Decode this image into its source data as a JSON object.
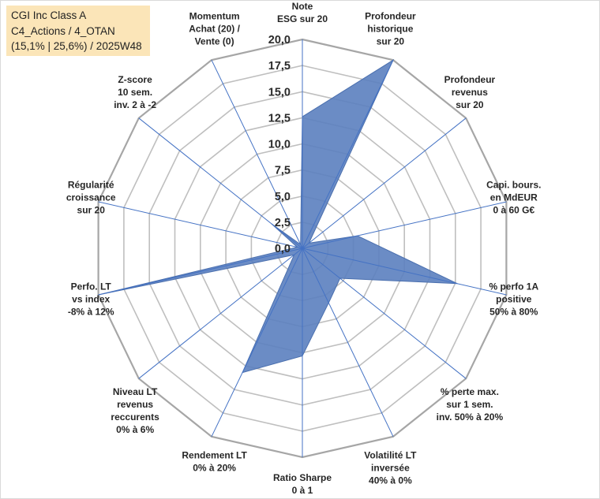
{
  "info_box": {
    "line1": "CGI Inc Class A",
    "line2": "C4_Actions / 4_OTAN",
    "line3": "(15,1% | 25,6%) / 2025W48"
  },
  "chart_data": {
    "type": "radar",
    "title": "",
    "rlim": [
      0,
      20
    ],
    "tick_values": [
      0,
      2.5,
      5,
      7.5,
      10,
      12.5,
      15,
      17.5,
      20
    ],
    "tick_labels": [
      "0,0",
      "2,5",
      "5,0",
      "7,5",
      "10,0",
      "12,5",
      "15,0",
      "17,5",
      "20,0"
    ],
    "axes": [
      [
        "Note",
        "ESG sur 20"
      ],
      [
        "Profondeur",
        "historique",
        "sur 20"
      ],
      [
        "Profondeur",
        "revenus",
        "sur 20"
      ],
      [
        "Capi. bours.",
        "en MdEUR",
        "0 à 60 G€"
      ],
      [
        "% perfo 1A",
        "positive",
        "50% à 80%"
      ],
      [
        "% perte max.",
        "sur 1 sem.",
        "inv. 50% à 20%"
      ],
      [
        "Volatilité LT",
        "inversée",
        "40% à 0%"
      ],
      [
        "Ratio Sharpe",
        "0 à 1"
      ],
      [
        "Rendement LT",
        "0% à 20%"
      ],
      [
        "Niveau LT",
        "revenus",
        "reccurents",
        "0% à 6%"
      ],
      [
        "Perfo. LT",
        "vs index",
        "-8% à 12%"
      ],
      [
        "Régularité",
        "croissance",
        "sur 20"
      ],
      [
        "Z-score",
        "10 sem.",
        "inv. 2 à -2"
      ],
      [
        "Momentum",
        "Achat (20) /",
        "Vente (0)"
      ]
    ],
    "series": [
      {
        "name": "CGI Inc Class A",
        "color": "#5b7fbf",
        "values": [
          12.6,
          20,
          0.8,
          5.4,
          15.2,
          4.6,
          5.8,
          10.3,
          13.2,
          1.0,
          20,
          0.5,
          3.8,
          0.4
        ]
      }
    ],
    "grid_color": "#bfbfbf",
    "spoke_color": "#4472c4"
  }
}
